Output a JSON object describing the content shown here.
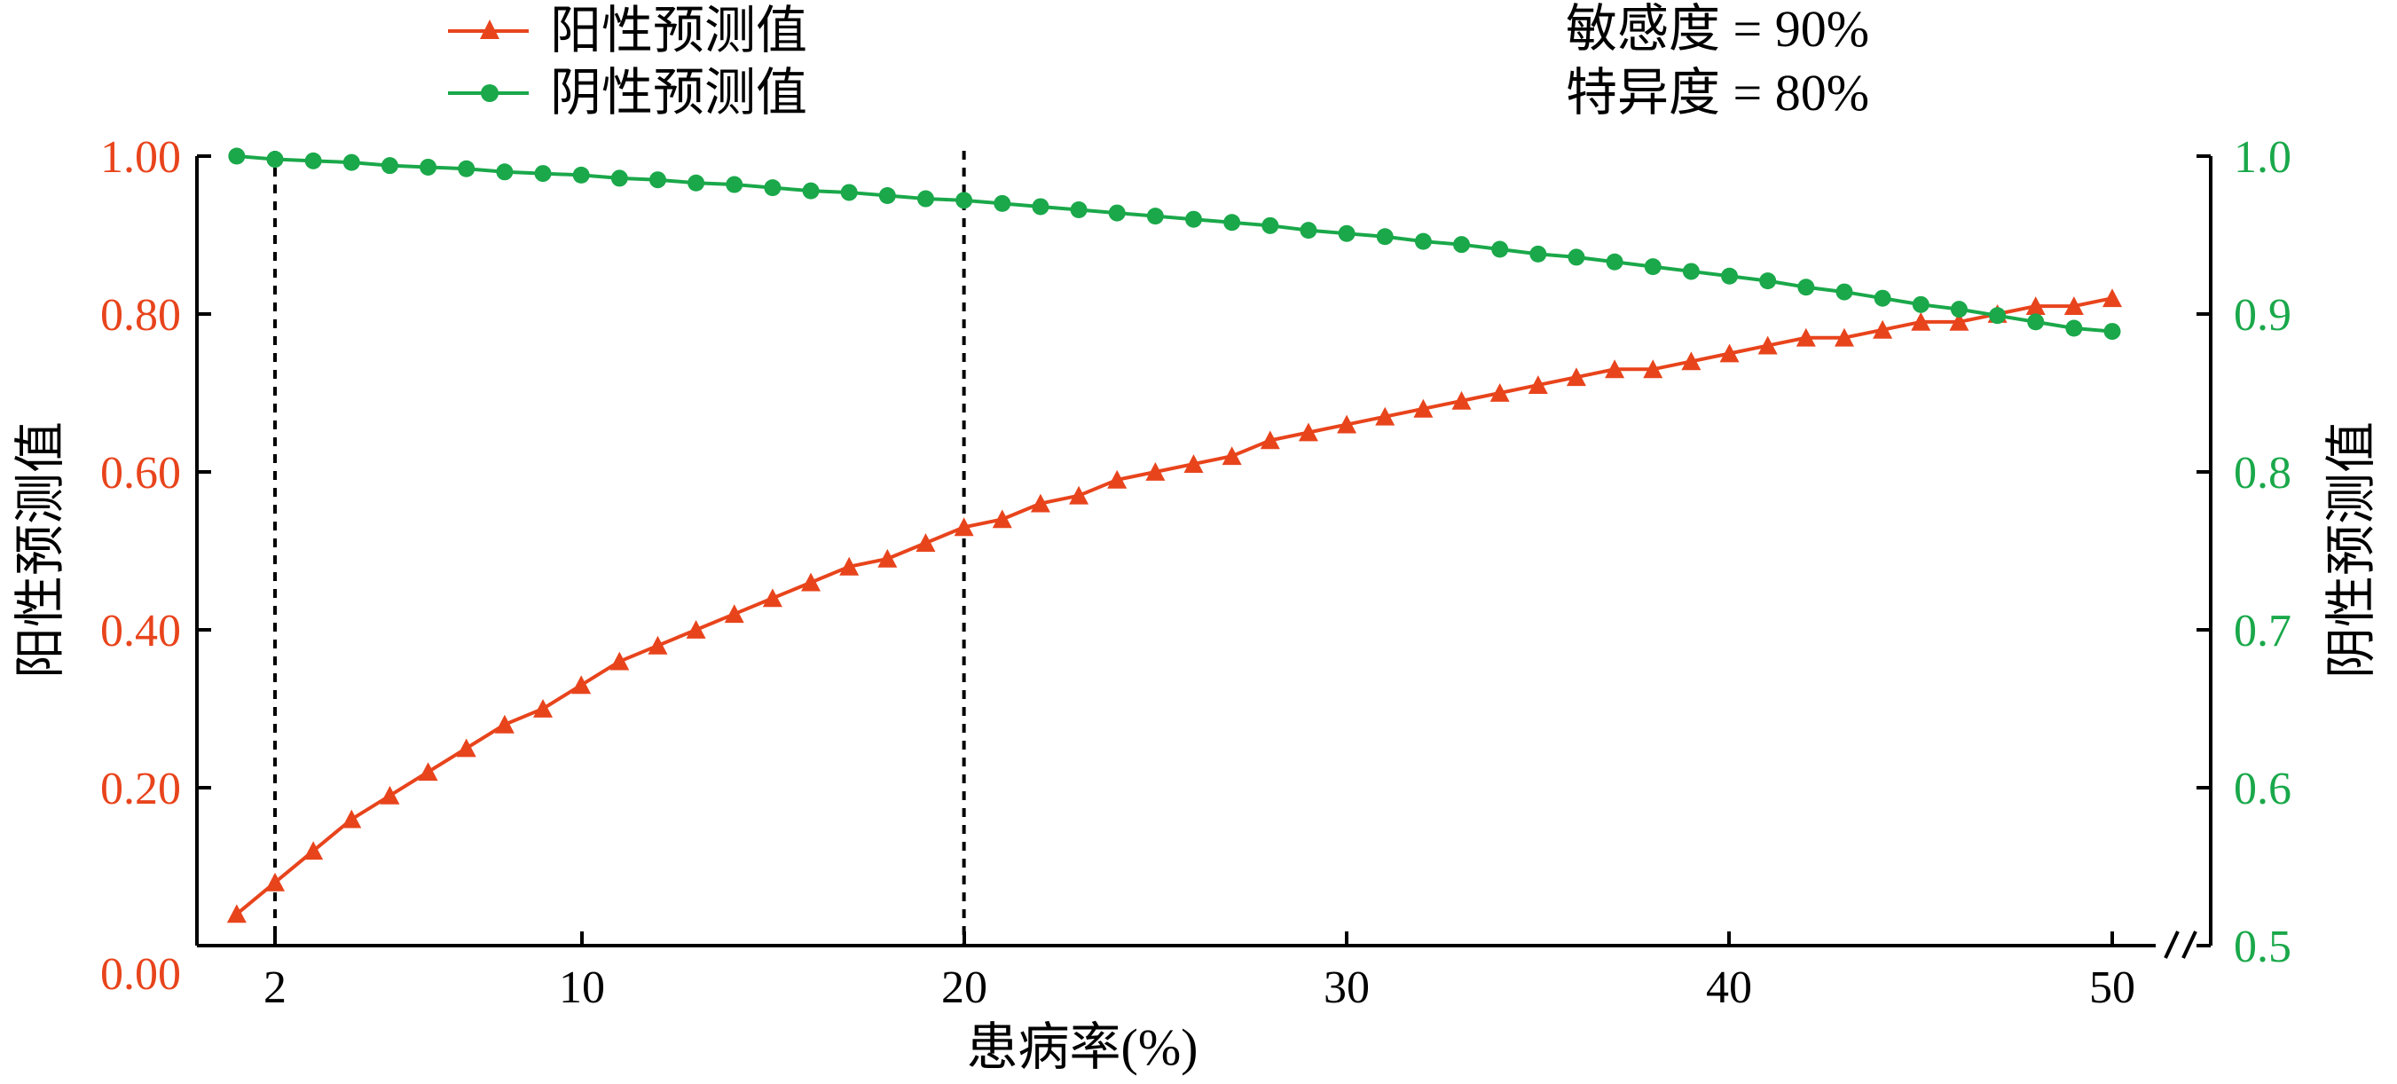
{
  "chart_data": {
    "type": "line",
    "title": "",
    "xlabel": "患病率(%)",
    "ylabel_left": "阳性预测值",
    "ylabel_right": "阴性预测值",
    "x_ticks": [
      "2",
      "10",
      "20",
      "30",
      "40",
      "50"
    ],
    "y_left_ticks": [
      "0.00",
      "0.20",
      "0.40",
      "0.60",
      "0.80",
      "1.00"
    ],
    "y_right_ticks": [
      "0.5",
      "0.6",
      "0.7",
      "0.8",
      "0.9",
      "1.0"
    ],
    "xlim": [
      0,
      51
    ],
    "ylim_left": [
      0,
      1
    ],
    "ylim_right": [
      0.5,
      1
    ],
    "reference_lines_x": [
      2,
      20
    ],
    "annotations": [
      "敏感度 = 90%",
      "特异度 = 80%"
    ],
    "legend_position": "top-left",
    "grid": false,
    "series": [
      {
        "name": "阳性预测值",
        "axis": "left",
        "color": "#e8441c",
        "marker": "triangle",
        "x": [
          1,
          2,
          3,
          4,
          5,
          6,
          7,
          8,
          9,
          10,
          11,
          12,
          13,
          14,
          15,
          16,
          17,
          18,
          19,
          20,
          21,
          22,
          23,
          24,
          25,
          26,
          27,
          28,
          29,
          30,
          31,
          32,
          33,
          34,
          35,
          36,
          37,
          38,
          39,
          40,
          41,
          42,
          43,
          44,
          45,
          46,
          47,
          48,
          49,
          50
        ],
        "y": [
          0.04,
          0.08,
          0.12,
          0.16,
          0.19,
          0.22,
          0.25,
          0.28,
          0.3,
          0.33,
          0.36,
          0.38,
          0.4,
          0.42,
          0.44,
          0.46,
          0.48,
          0.49,
          0.51,
          0.53,
          0.54,
          0.56,
          0.57,
          0.59,
          0.6,
          0.61,
          0.62,
          0.64,
          0.65,
          0.66,
          0.67,
          0.68,
          0.69,
          0.7,
          0.71,
          0.72,
          0.73,
          0.73,
          0.74,
          0.75,
          0.76,
          0.77,
          0.77,
          0.78,
          0.79,
          0.79,
          0.8,
          0.81,
          0.81,
          0.82
        ]
      },
      {
        "name": "阴性预测值",
        "axis": "right",
        "color": "#1aa84a",
        "marker": "circle",
        "x": [
          1,
          2,
          3,
          4,
          5,
          6,
          7,
          8,
          9,
          10,
          11,
          12,
          13,
          14,
          15,
          16,
          17,
          18,
          19,
          20,
          21,
          22,
          23,
          24,
          25,
          26,
          27,
          28,
          29,
          30,
          31,
          32,
          33,
          34,
          35,
          36,
          37,
          38,
          39,
          40,
          41,
          42,
          43,
          44,
          45,
          46,
          47,
          48,
          49,
          50
        ],
        "y": [
          1.0,
          0.998,
          0.997,
          0.996,
          0.994,
          0.993,
          0.992,
          0.99,
          0.989,
          0.988,
          0.986,
          0.985,
          0.983,
          0.982,
          0.98,
          0.978,
          0.977,
          0.975,
          0.973,
          0.972,
          0.97,
          0.968,
          0.966,
          0.964,
          0.962,
          0.96,
          0.958,
          0.956,
          0.953,
          0.951,
          0.949,
          0.946,
          0.944,
          0.941,
          0.938,
          0.936,
          0.933,
          0.93,
          0.927,
          0.924,
          0.921,
          0.917,
          0.914,
          0.91,
          0.906,
          0.903,
          0.899,
          0.895,
          0.891,
          0.889
        ]
      }
    ]
  }
}
